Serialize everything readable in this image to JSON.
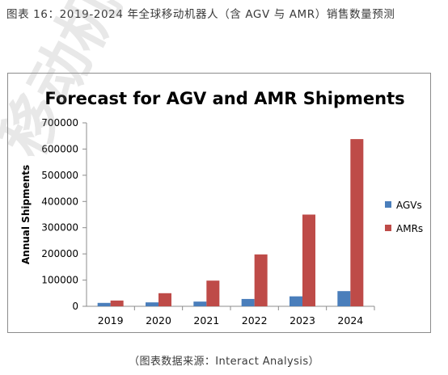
{
  "figure_caption": "图表 16：2019-2024 年全球移动机器人（含 AGV 与 AMR）销售数量预测",
  "source_note": "（图表数据来源：Interact Analysis）",
  "watermark_text": "移动机器人",
  "colors": {
    "agv": "#4a7ebb",
    "amr": "#be4b48",
    "grid": "#8c8c8c"
  },
  "chart_data": {
    "type": "bar",
    "title": "Forecast for AGV and AMR Shipments",
    "xlabel": "",
    "ylabel": "Annual Shipments",
    "categories": [
      "2019",
      "2020",
      "2021",
      "2022",
      "2023",
      "2024"
    ],
    "series": [
      {
        "name": "AGVs",
        "values": [
          13000,
          15000,
          18000,
          28000,
          38000,
          58000
        ]
      },
      {
        "name": "AMRs",
        "values": [
          22000,
          50000,
          98000,
          198000,
          350000,
          638000
        ]
      }
    ],
    "ylim": [
      0,
      700000
    ],
    "yticks": [
      "0",
      "100000",
      "200000",
      "300000",
      "400000",
      "500000",
      "600000",
      "700000"
    ],
    "grid": false,
    "legend": "right"
  }
}
